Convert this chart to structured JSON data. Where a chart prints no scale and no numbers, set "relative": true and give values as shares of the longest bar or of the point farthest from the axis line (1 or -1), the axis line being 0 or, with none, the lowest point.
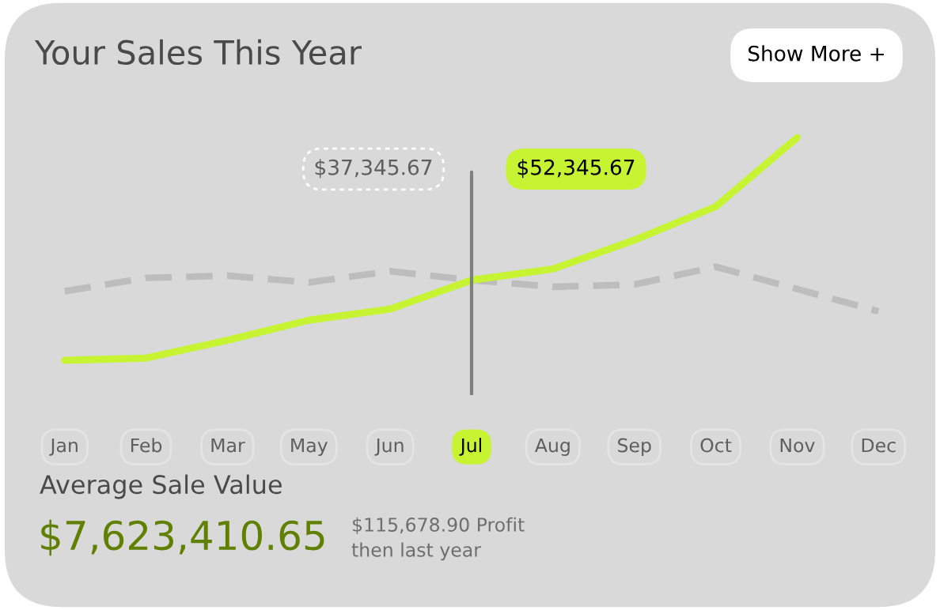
{
  "chart_data": {
    "type": "line",
    "title": "Your Sales This Year",
    "relative": true,
    "legend": false,
    "grid": false,
    "categories": [
      "Jan",
      "Feb",
      "Mar",
      "May",
      "Jun",
      "Jul",
      "Aug",
      "Sep",
      "Oct",
      "Nov",
      "Dec"
    ],
    "series": [
      {
        "color": "#c6f432",
        "line_style": "solid",
        "values": [
          0,
          0.01,
          0.09,
          0.18,
          0.23,
          0.36,
          0.41,
          0.54,
          0.69,
          1,
          null
        ]
      },
      {
        "color": "#bdbdbd",
        "line_style": "dashed",
        "values": [
          0.31,
          0.37,
          0.38,
          0.35,
          0.4,
          0.36,
          0.33,
          0.34,
          0.42,
          0.32,
          0.22
        ]
      }
    ],
    "ref_lines": [
      {
        "axis": "x",
        "value": "Jul",
        "color": "#808080"
      }
    ],
    "annotations": [
      "$37,345.67",
      "$52,345.67",
      "Show More +",
      "Average Sale Value",
      "$7,623,410.65",
      "$115,678.90 Profit\nthen last year"
    ]
  }
}
